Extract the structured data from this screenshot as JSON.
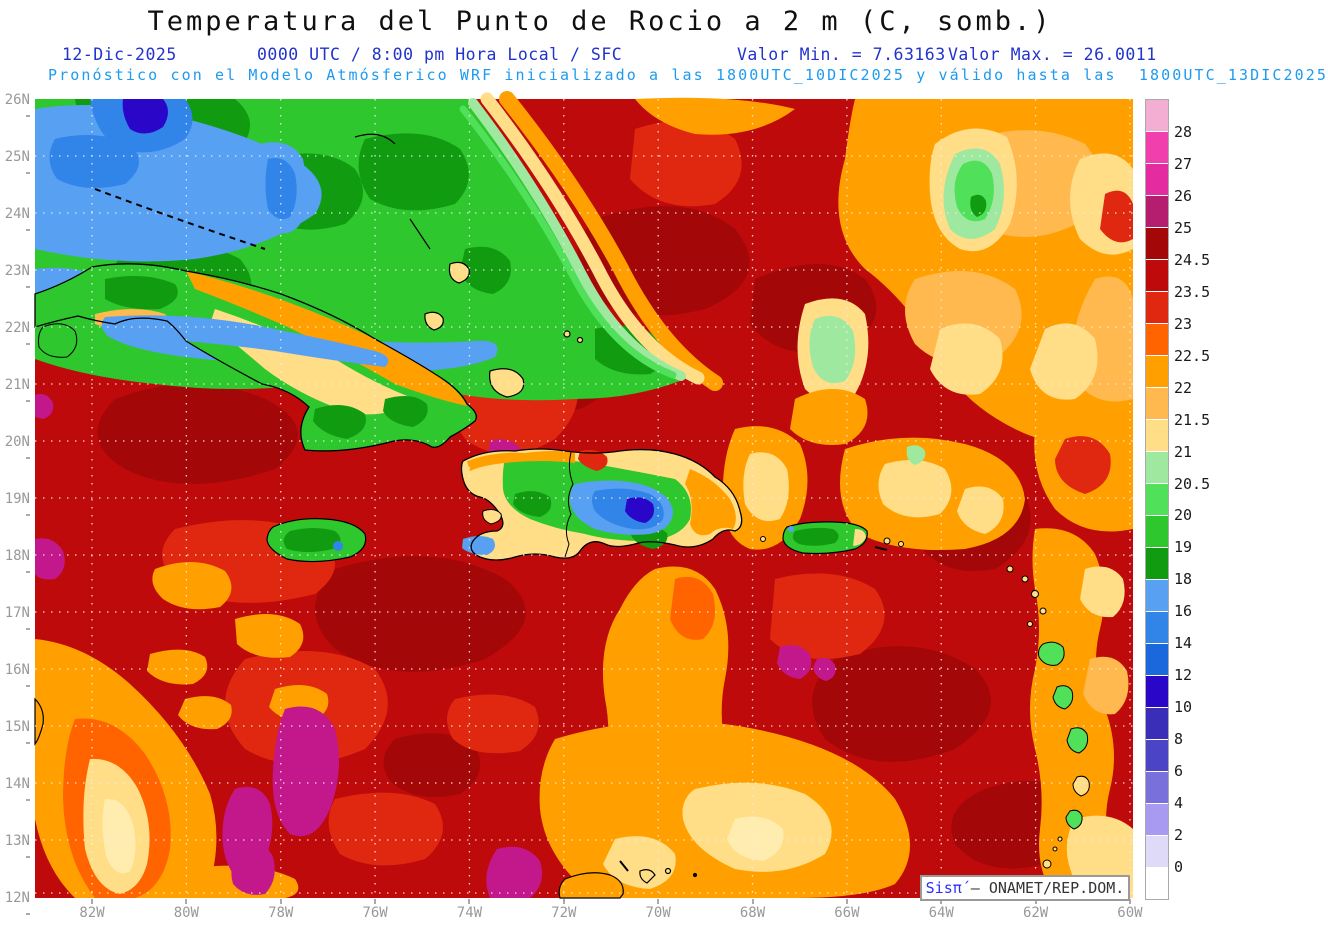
{
  "header": {
    "title": "Temperatura del Punto de Rocio a 2 m (C, somb.)",
    "date": "12-Dic-2025",
    "time_info": "0000 UTC / 8:00 pm Hora Local / SFC",
    "min_label": "Valor Min. = 7.63163",
    "max_label": "Valor Max. = 26.0011",
    "model_line": "Pronóstico con el Modelo Atmósferico WRF inicializado a las 1800UTC_10DIC2025 y válido hasta las  1800UTC_13DIC2025",
    "colors": {
      "title": "#101010",
      "line2": "#2233cc",
      "line3": "#1e9aef"
    }
  },
  "watermark": {
    "system": "Sisπ́",
    "separator": "–",
    "org": "ONAMET/REP.DOM."
  },
  "axes": {
    "lat_labels": [
      "26N",
      "25N",
      "24N",
      "23N",
      "22N",
      "21N",
      "20N",
      "19N",
      "18N",
      "17N",
      "16N",
      "15N",
      "14N",
      "13N",
      "12N"
    ],
    "lon_labels": [
      "82W",
      "80W",
      "78W",
      "76W",
      "74W",
      "72W",
      "70W",
      "68W",
      "66W",
      "64W",
      "62W",
      "60W"
    ],
    "axis_color": "#999999"
  },
  "colorbar": {
    "entries": [
      {
        "color": "#F4AED3",
        "label": "28"
      },
      {
        "color": "#F23FAE",
        "label": "27"
      },
      {
        "color": "#E42B9F",
        "label": "26"
      },
      {
        "color": "#B51E6E",
        "label": "25"
      },
      {
        "color": "#A30707",
        "label": "24.5"
      },
      {
        "color": "#BE0A0A",
        "label": "23.5"
      },
      {
        "color": "#E02810",
        "label": "23"
      },
      {
        "color": "#FF6400",
        "label": "22.5"
      },
      {
        "color": "#FFA000",
        "label": "22"
      },
      {
        "color": "#FFB94E",
        "label": "21.5"
      },
      {
        "color": "#FFDE87",
        "label": "21"
      },
      {
        "color": "#9FE89F",
        "label": "20.5"
      },
      {
        "color": "#50E05A",
        "label": "20"
      },
      {
        "color": "#2EC82E",
        "label": "19"
      },
      {
        "color": "#119B11",
        "label": "18"
      },
      {
        "color": "#57A0F2",
        "label": "16"
      },
      {
        "color": "#3184E8",
        "label": "14"
      },
      {
        "color": "#1A68DC",
        "label": "12"
      },
      {
        "color": "#2A06C8",
        "label": "10"
      },
      {
        "color": "#3A2EB8",
        "label": "8"
      },
      {
        "color": "#4B44C6",
        "label": "6"
      },
      {
        "color": "#7A70DC",
        "label": "4"
      },
      {
        "color": "#A89AF0",
        "label": "2"
      },
      {
        "color": "#DEDAF8",
        "label": "0"
      },
      {
        "color": "#FFFFFF",
        "label": ""
      }
    ]
  },
  "map_palette": {
    "base": "#BE0A0A",
    "dark": "#A30707",
    "red": "#E02810",
    "o1": "#FF6400",
    "o2": "#FFA000",
    "o3": "#FFB94E",
    "kh": "#FFDE87",
    "cr": "#FFEDB0",
    "lg": "#9FE89F",
    "bg": "#50E05A",
    "g": "#2EC82E",
    "dg": "#119B11",
    "lb": "#57A0F2",
    "mb": "#3184E8",
    "db": "#1A68DC",
    "nv": "#2A06C8",
    "mag": "#C2188C",
    "coast": "#000000",
    "grid": "#F0F0F0"
  },
  "chart_data": {
    "type": "heatmap",
    "title": "Temperatura del Punto de Rocio a 2 m (C, somb.)",
    "variable": "2 m dew point temperature (°C), shaded",
    "valid_time": "12-Dic-2025 0000 UTC / 8:00 pm Hora Local / SFC",
    "model": "WRF, inicializado 1800UTC_10DIC2025, válido hasta 1800UTC_13DIC2025",
    "value_min": 7.63163,
    "value_max": 26.0011,
    "lat_range_deg_n": [
      12,
      26
    ],
    "lon_range_deg_w": [
      83.2,
      60
    ],
    "grid": "dotted graticule, 1° latitude × 2° longitude",
    "legend_position": "right",
    "contour_levels": [
      0,
      2,
      4,
      6,
      8,
      10,
      12,
      14,
      16,
      18,
      19,
      20,
      20.5,
      21,
      21.5,
      22,
      22.5,
      23,
      23.5,
      24.5,
      25,
      26,
      27,
      28
    ],
    "features": [
      "Dry airmass (dew points 12-20 C: blues/greens) over Gulf of Mexico, Florida, Bahamas and western/central Cuba in the northwest corner",
      "Very low dew point core (~8-14 C, dark blue) over south Florida tip and over Hispaniola's Cordillera Central near 19N 70.7W",
      "Green/blue minima over island interiors: Jamaica, Hispaniola, Puerto Rico, eastern Cuba mountains, Guadeloupe-Martinique-St Vincent",
      "Moist airmass (23.5-24.5 C, dark red) covering most Caribbean and Atlantic waters",
      "Patches exceeding 25 C (magenta) southwest of Jamaica near 13-14N 79-80W, near 12N 73W, and south/east of Puerto Rico",
      "Orange/yellow bands (21-23 C) along transition zones: northwest of Cuba toward Bahamas, Mona Passage south to 12N, NE of Puerto Rico, along Lesser Antilles, and SW Caribbean near Nicaragua"
    ]
  }
}
